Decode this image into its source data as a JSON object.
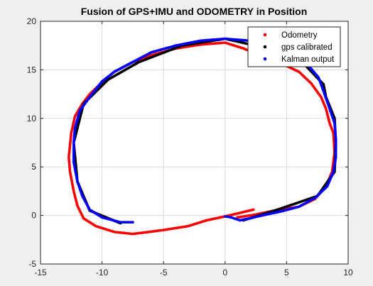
{
  "chart_data": {
    "type": "scatter",
    "title": "Fusion of GPS+IMU and ODOMETRY in Position",
    "xlabel": "",
    "ylabel": "",
    "xlim": [
      -15,
      10
    ],
    "ylim": [
      -5,
      20
    ],
    "x_ticks": [
      -15,
      -10,
      -5,
      0,
      5,
      10
    ],
    "y_ticks": [
      -5,
      0,
      5,
      10,
      15,
      20
    ],
    "x_tick_labels": [
      "-15",
      "-10",
      "-5",
      "0",
      "5",
      "10"
    ],
    "y_tick_labels": [
      "-5",
      "0",
      "5",
      "10",
      "15",
      "20"
    ],
    "grid": true,
    "legend_position": "top-right",
    "series": [
      {
        "name": "Odometry",
        "color": "#ff0000",
        "marker": "dot",
        "points": [
          [
            2.3,
            0.6
          ],
          [
            1.0,
            0.2
          ],
          [
            0.0,
            -0.1
          ],
          [
            -1.5,
            -0.5
          ],
          [
            -3.0,
            -1.1
          ],
          [
            -5.0,
            -1.5
          ],
          [
            -6.2,
            -1.7
          ],
          [
            -7.5,
            -1.9
          ],
          [
            -9.0,
            -1.7
          ],
          [
            -10.5,
            -1.1
          ],
          [
            -11.5,
            -0.3
          ],
          [
            -12.0,
            1.0
          ],
          [
            -12.3,
            2.5
          ],
          [
            -12.6,
            4.5
          ],
          [
            -12.7,
            6.0
          ],
          [
            -12.5,
            8.5
          ],
          [
            -12.2,
            10.2
          ],
          [
            -11.6,
            11.5
          ],
          [
            -11.0,
            12.5
          ],
          [
            -10.0,
            13.7
          ],
          [
            -9.0,
            14.8
          ],
          [
            -7.5,
            15.8
          ],
          [
            -6.0,
            16.5
          ],
          [
            -4.0,
            17.2
          ],
          [
            -2.0,
            17.6
          ],
          [
            0.0,
            17.8
          ],
          [
            1.5,
            17.2
          ],
          [
            3.0,
            16.4
          ],
          [
            4.5,
            15.7
          ],
          [
            6.0,
            14.8
          ],
          [
            7.0,
            13.6
          ],
          [
            7.8,
            12.2
          ],
          [
            8.2,
            11.0
          ],
          [
            8.5,
            9.5
          ],
          [
            8.8,
            8.5
          ],
          [
            8.9,
            6.5
          ],
          [
            8.7,
            4.5
          ],
          [
            8.2,
            3.0
          ],
          [
            7.3,
            1.7
          ],
          [
            6.0,
            0.9
          ],
          [
            4.0,
            0.5
          ],
          [
            2.5,
            0.1
          ],
          [
            1.0,
            -0.2
          ]
        ]
      },
      {
        "name": "gps calibrated",
        "color": "#000000",
        "marker": "dot",
        "points": [
          [
            -8.5,
            -0.8
          ],
          [
            -11.0,
            0.5
          ],
          [
            -12.0,
            3.5
          ],
          [
            -12.3,
            7.5
          ],
          [
            -11.5,
            11.5
          ],
          [
            -9.5,
            14.0
          ],
          [
            -7.0,
            15.8
          ],
          [
            -3.5,
            17.5
          ],
          [
            0.0,
            18.2
          ],
          [
            3.5,
            17.2
          ],
          [
            6.5,
            15.5
          ],
          [
            8.0,
            13.5
          ],
          [
            8.2,
            12.2
          ],
          [
            8.9,
            10.0
          ],
          [
            9.0,
            7.5
          ],
          [
            8.9,
            4.5
          ],
          [
            7.5,
            2.0
          ],
          [
            4.5,
            0.7
          ],
          [
            1.5,
            -0.5
          ]
        ]
      },
      {
        "name": "Kalman output",
        "color": "#0000ff",
        "marker": "dot",
        "points": [
          [
            -7.5,
            -0.7
          ],
          [
            -8.5,
            -0.7
          ],
          [
            -10.0,
            -0.2
          ],
          [
            -11.0,
            0.6
          ],
          [
            -11.6,
            2.0
          ],
          [
            -12.0,
            3.5
          ],
          [
            -12.3,
            5.5
          ],
          [
            -12.3,
            7.5
          ],
          [
            -12.2,
            9.0
          ],
          [
            -11.8,
            10.8
          ],
          [
            -11.0,
            12.2
          ],
          [
            -10.0,
            13.8
          ],
          [
            -9.0,
            14.8
          ],
          [
            -7.5,
            15.8
          ],
          [
            -6.0,
            16.8
          ],
          [
            -4.0,
            17.5
          ],
          [
            -2.0,
            18.0
          ],
          [
            0.0,
            18.2
          ],
          [
            2.0,
            18.0
          ],
          [
            4.0,
            17.3
          ],
          [
            5.5,
            16.4
          ],
          [
            6.8,
            15.4
          ],
          [
            7.6,
            14.2
          ],
          [
            8.0,
            12.8
          ],
          [
            8.5,
            11.0
          ],
          [
            8.9,
            9.5
          ],
          [
            9.0,
            7.8
          ],
          [
            9.0,
            6.0
          ],
          [
            8.8,
            4.5
          ],
          [
            8.3,
            3.0
          ],
          [
            7.3,
            1.8
          ],
          [
            6.0,
            0.9
          ],
          [
            4.5,
            0.4
          ],
          [
            3.0,
            0.0
          ],
          [
            2.0,
            -0.3
          ],
          [
            1.2,
            -0.5
          ],
          [
            0.5,
            -0.2
          ],
          [
            0.0,
            -0.1
          ]
        ]
      }
    ]
  }
}
